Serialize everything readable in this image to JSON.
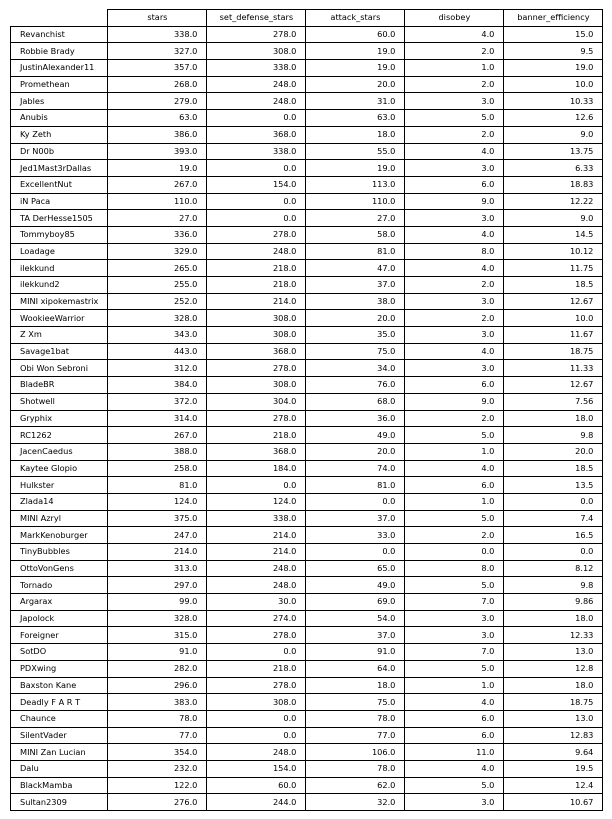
{
  "chart_data": {
    "type": "table",
    "columns": [
      "stars",
      "set_defense_stars",
      "attack_stars",
      "disobey",
      "banner_efficiency"
    ],
    "rows": [
      {
        "name": "Revanchist",
        "values": [
          "338.0",
          "278.0",
          "60.0",
          "4.0",
          "15.0"
        ]
      },
      {
        "name": "Robbie Brady",
        "values": [
          "327.0",
          "308.0",
          "19.0",
          "2.0",
          "9.5"
        ]
      },
      {
        "name": "JustinAlexander11",
        "values": [
          "357.0",
          "338.0",
          "19.0",
          "1.0",
          "19.0"
        ]
      },
      {
        "name": "Promethean",
        "values": [
          "268.0",
          "248.0",
          "20.0",
          "2.0",
          "10.0"
        ]
      },
      {
        "name": "Jables",
        "values": [
          "279.0",
          "248.0",
          "31.0",
          "3.0",
          "10.33"
        ]
      },
      {
        "name": "Anubis",
        "values": [
          "63.0",
          "0.0",
          "63.0",
          "5.0",
          "12.6"
        ]
      },
      {
        "name": "Ky Zeth",
        "values": [
          "386.0",
          "368.0",
          "18.0",
          "2.0",
          "9.0"
        ]
      },
      {
        "name": "Dr N00b",
        "values": [
          "393.0",
          "338.0",
          "55.0",
          "4.0",
          "13.75"
        ]
      },
      {
        "name": "Jed1Mast3rDallas",
        "values": [
          "19.0",
          "0.0",
          "19.0",
          "3.0",
          "6.33"
        ]
      },
      {
        "name": "ExcellentNut",
        "values": [
          "267.0",
          "154.0",
          "113.0",
          "6.0",
          "18.83"
        ]
      },
      {
        "name": "iN Paca",
        "values": [
          "110.0",
          "0.0",
          "110.0",
          "9.0",
          "12.22"
        ]
      },
      {
        "name": "TA DerHesse1505",
        "values": [
          "27.0",
          "0.0",
          "27.0",
          "3.0",
          "9.0"
        ]
      },
      {
        "name": "Tommyboy85",
        "values": [
          "336.0",
          "278.0",
          "58.0",
          "4.0",
          "14.5"
        ]
      },
      {
        "name": "Loadage",
        "values": [
          "329.0",
          "248.0",
          "81.0",
          "8.0",
          "10.12"
        ]
      },
      {
        "name": "ilekkund",
        "values": [
          "265.0",
          "218.0",
          "47.0",
          "4.0",
          "11.75"
        ]
      },
      {
        "name": "ilekkund2",
        "values": [
          "255.0",
          "218.0",
          "37.0",
          "2.0",
          "18.5"
        ]
      },
      {
        "name": "MINI xipokemastrix",
        "values": [
          "252.0",
          "214.0",
          "38.0",
          "3.0",
          "12.67"
        ]
      },
      {
        "name": "WookieeWarrior",
        "values": [
          "328.0",
          "308.0",
          "20.0",
          "2.0",
          "10.0"
        ]
      },
      {
        "name": "Z Xm",
        "values": [
          "343.0",
          "308.0",
          "35.0",
          "3.0",
          "11.67"
        ]
      },
      {
        "name": "Savage1bat",
        "values": [
          "443.0",
          "368.0",
          "75.0",
          "4.0",
          "18.75"
        ]
      },
      {
        "name": "Obi Won Sebroni",
        "values": [
          "312.0",
          "278.0",
          "34.0",
          "3.0",
          "11.33"
        ]
      },
      {
        "name": "BladeBR",
        "values": [
          "384.0",
          "308.0",
          "76.0",
          "6.0",
          "12.67"
        ]
      },
      {
        "name": "Shotwell",
        "values": [
          "372.0",
          "304.0",
          "68.0",
          "9.0",
          "7.56"
        ]
      },
      {
        "name": "Gryphix",
        "values": [
          "314.0",
          "278.0",
          "36.0",
          "2.0",
          "18.0"
        ]
      },
      {
        "name": "RC1262",
        "values": [
          "267.0",
          "218.0",
          "49.0",
          "5.0",
          "9.8"
        ]
      },
      {
        "name": "JacenCaedus",
        "values": [
          "388.0",
          "368.0",
          "20.0",
          "1.0",
          "20.0"
        ]
      },
      {
        "name": "Kaytee Glopio",
        "values": [
          "258.0",
          "184.0",
          "74.0",
          "4.0",
          "18.5"
        ]
      },
      {
        "name": "Hulkster",
        "values": [
          "81.0",
          "0.0",
          "81.0",
          "6.0",
          "13.5"
        ]
      },
      {
        "name": "Zlada14",
        "values": [
          "124.0",
          "124.0",
          "0.0",
          "1.0",
          "0.0"
        ]
      },
      {
        "name": "MINI Azryl",
        "values": [
          "375.0",
          "338.0",
          "37.0",
          "5.0",
          "7.4"
        ]
      },
      {
        "name": "MarkKenoburger",
        "values": [
          "247.0",
          "214.0",
          "33.0",
          "2.0",
          "16.5"
        ]
      },
      {
        "name": "TinyBubbles",
        "values": [
          "214.0",
          "214.0",
          "0.0",
          "0.0",
          "0.0"
        ]
      },
      {
        "name": "OttoVonGens",
        "values": [
          "313.0",
          "248.0",
          "65.0",
          "8.0",
          "8.12"
        ]
      },
      {
        "name": "Tornado",
        "values": [
          "297.0",
          "248.0",
          "49.0",
          "5.0",
          "9.8"
        ]
      },
      {
        "name": "Argarax",
        "values": [
          "99.0",
          "30.0",
          "69.0",
          "7.0",
          "9.86"
        ]
      },
      {
        "name": "Japolock",
        "values": [
          "328.0",
          "274.0",
          "54.0",
          "3.0",
          "18.0"
        ]
      },
      {
        "name": "Foreigner",
        "values": [
          "315.0",
          "278.0",
          "37.0",
          "3.0",
          "12.33"
        ]
      },
      {
        "name": "SotDO",
        "values": [
          "91.0",
          "0.0",
          "91.0",
          "7.0",
          "13.0"
        ]
      },
      {
        "name": "PDXwing",
        "values": [
          "282.0",
          "218.0",
          "64.0",
          "5.0",
          "12.8"
        ]
      },
      {
        "name": "Baxston Kane",
        "values": [
          "296.0",
          "278.0",
          "18.0",
          "1.0",
          "18.0"
        ]
      },
      {
        "name": "Deadly F A R T",
        "values": [
          "383.0",
          "308.0",
          "75.0",
          "4.0",
          "18.75"
        ]
      },
      {
        "name": "Chaunce",
        "values": [
          "78.0",
          "0.0",
          "78.0",
          "6.0",
          "13.0"
        ]
      },
      {
        "name": "SilentVader",
        "values": [
          "77.0",
          "0.0",
          "77.0",
          "6.0",
          "12.83"
        ]
      },
      {
        "name": "MINI Zan Lucian",
        "values": [
          "354.0",
          "248.0",
          "106.0",
          "11.0",
          "9.64"
        ]
      },
      {
        "name": "Dalu",
        "values": [
          "232.0",
          "154.0",
          "78.0",
          "4.0",
          "19.5"
        ]
      },
      {
        "name": "BlackMamba",
        "values": [
          "122.0",
          "60.0",
          "62.0",
          "5.0",
          "12.4"
        ]
      },
      {
        "name": "Sultan2309",
        "values": [
          "276.0",
          "244.0",
          "32.0",
          "3.0",
          "10.67"
        ]
      }
    ]
  }
}
